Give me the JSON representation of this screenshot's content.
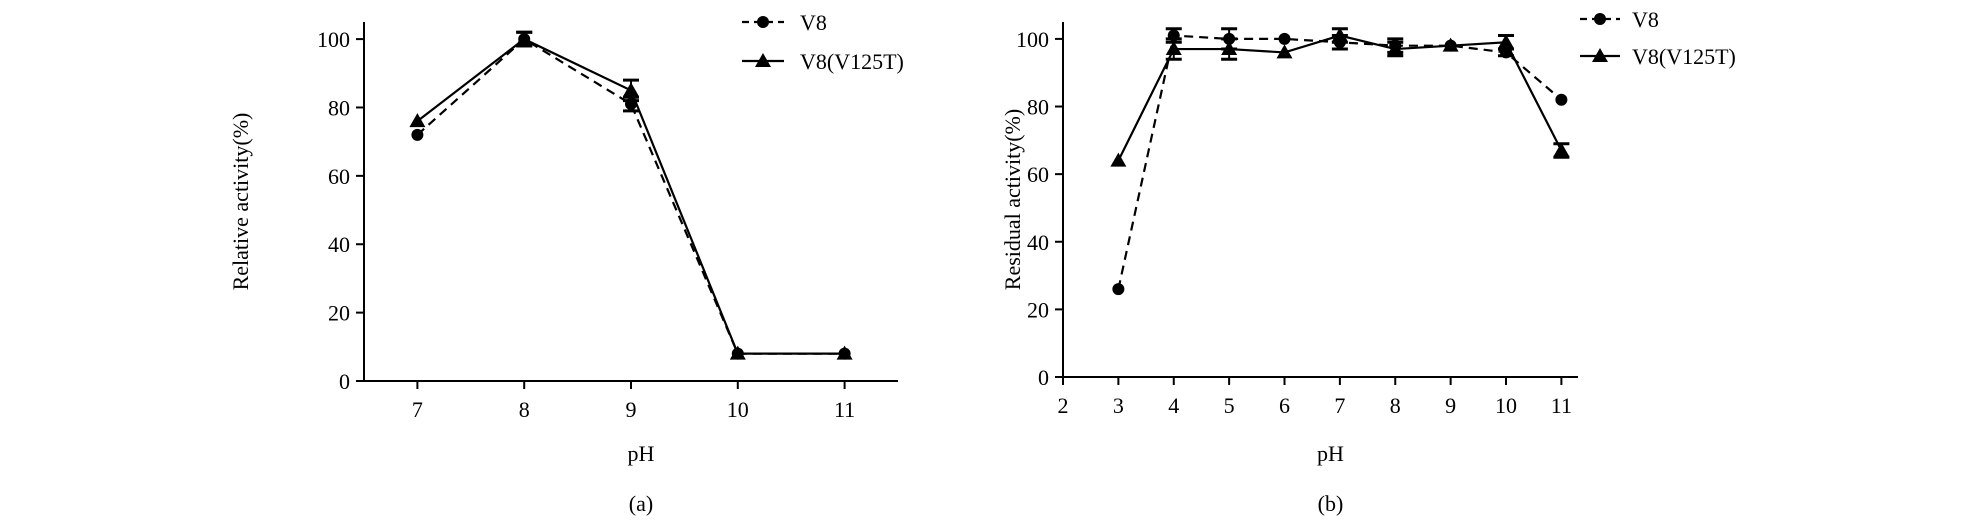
{
  "chart_data": [
    {
      "type": "line",
      "panel_label": "(a)",
      "xlabel": "pH",
      "ylabel": "Relative activity(%)",
      "xlim": [
        6.5,
        11.5
      ],
      "ylim": [
        0,
        105
      ],
      "xticks": [
        7,
        8,
        9,
        10,
        11
      ],
      "yticks": [
        0,
        20,
        40,
        60,
        80,
        100
      ],
      "grid": false,
      "legend_position": "top-right",
      "series": [
        {
          "name": "V8",
          "marker": "circle",
          "line_style": "dashed",
          "x": [
            7,
            8,
            9,
            10,
            11
          ],
          "y": [
            72,
            100,
            81,
            8,
            8
          ],
          "error": [
            0,
            2,
            2,
            0,
            0
          ]
        },
        {
          "name": "V8(V125T)",
          "marker": "triangle",
          "line_style": "solid",
          "x": [
            7,
            8,
            9,
            10,
            11
          ],
          "y": [
            76,
            100,
            85,
            8,
            8
          ],
          "error": [
            0,
            2,
            3,
            0,
            0
          ]
        }
      ]
    },
    {
      "type": "line",
      "panel_label": "(b)",
      "xlabel": "pH",
      "ylabel": "Residual activity(%)",
      "xlim": [
        2,
        11.3
      ],
      "ylim": [
        0,
        105
      ],
      "xticks": [
        2,
        3,
        4,
        5,
        6,
        7,
        8,
        9,
        10,
        11
      ],
      "yticks": [
        0,
        20,
        40,
        60,
        80,
        100
      ],
      "grid": false,
      "legend_position": "top-right",
      "series": [
        {
          "name": "V8",
          "marker": "circle",
          "line_style": "dashed",
          "x": [
            3,
            4,
            5,
            6,
            7,
            8,
            9,
            10,
            11
          ],
          "y": [
            26,
            101,
            100,
            100,
            99,
            98,
            98,
            96,
            82
          ],
          "error": [
            0,
            2,
            3,
            0,
            2,
            2,
            0,
            1,
            0
          ]
        },
        {
          "name": "V8(V125T)",
          "marker": "triangle",
          "line_style": "solid",
          "x": [
            3,
            4,
            5,
            6,
            7,
            8,
            9,
            10,
            11
          ],
          "y": [
            64,
            97,
            97,
            96,
            101,
            97,
            98,
            99,
            67
          ],
          "error": [
            0,
            3,
            3,
            0,
            2,
            2,
            0,
            2,
            2
          ]
        }
      ]
    }
  ]
}
